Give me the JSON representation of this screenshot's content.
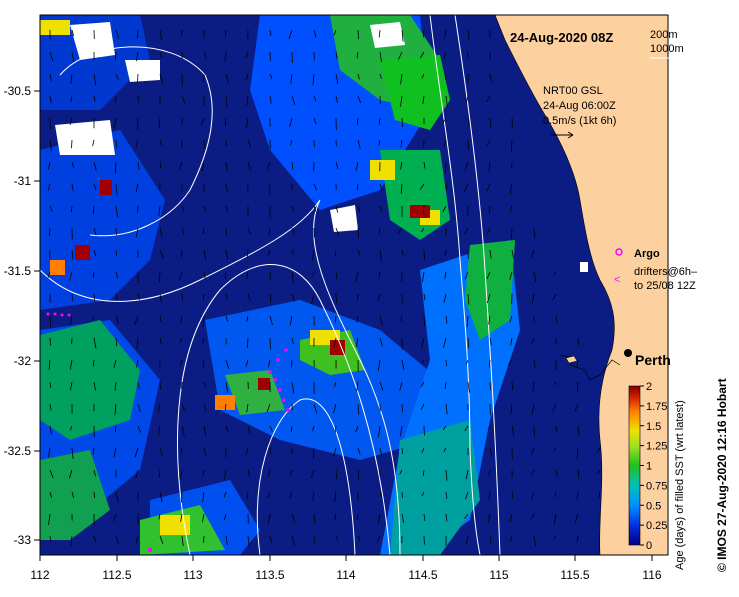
{
  "map": {
    "date_label": "24-Aug-2020 08Z",
    "contour_legend": {
      "line1": "200m",
      "line2": "1000m"
    },
    "current_info": {
      "line1": "NRT00 GSL",
      "line2": "24-Aug 06:00Z",
      "line3": "0.5m/s (1kt 6h)"
    },
    "argo_label": "Argo",
    "drifters_line1": "drifters@6h–",
    "drifters_line2": "to 25/08 12Z",
    "city_label": "Perth",
    "credit": "© IMOS 27-Aug-2020 12:16 Hobart"
  },
  "axes": {
    "x_ticks": [
      "112",
      "112.5",
      "113",
      "113.5",
      "114",
      "114.5",
      "115",
      "115.5",
      "116"
    ],
    "y_ticks": [
      "-30.5",
      "-31",
      "-31.5",
      "-32",
      "-32.5",
      "-33"
    ]
  },
  "colorbar": {
    "title": "Age (days) of filled SST (wrt latest)",
    "ticks": [
      "2",
      "1.75",
      "1.5",
      "1.25",
      "1",
      "0.75",
      "0.5",
      "0.25",
      "0"
    ],
    "colors": [
      "#000080",
      "#0000c8",
      "#0050ff",
      "#00a0ff",
      "#00c8a0",
      "#20c020",
      "#a0e020",
      "#f0e000",
      "#ff8000",
      "#d02000",
      "#800000"
    ]
  },
  "colors": {
    "ocean_base": "#0a1a7a",
    "land": "#fdd0a0",
    "cloud": "#ffffff",
    "argo": "#ff00ff"
  }
}
